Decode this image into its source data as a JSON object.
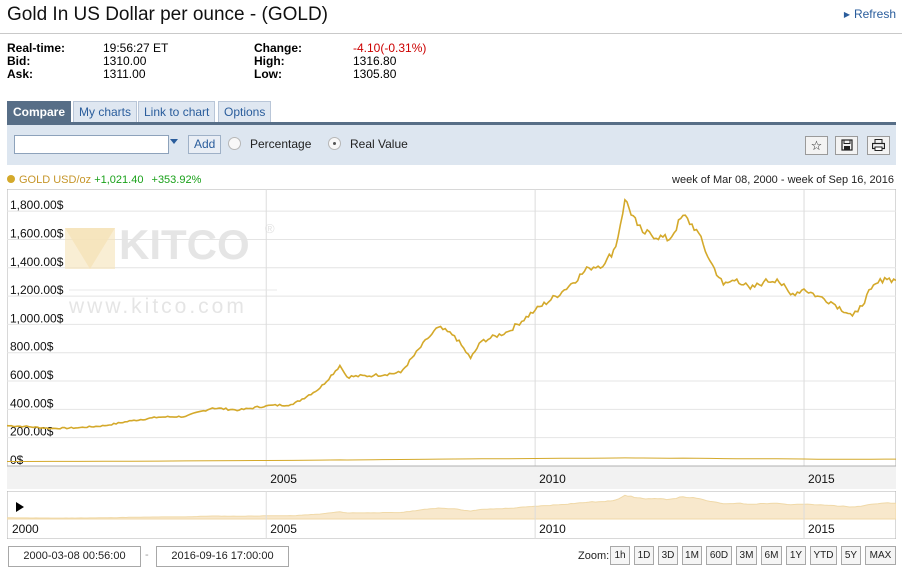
{
  "header": {
    "title": "Gold In US Dollar per ounce - (GOLD)",
    "refresh_label": "Refresh"
  },
  "quote": {
    "realtime_label": "Real-time:",
    "realtime_value": "19:56:27 ET",
    "bid_label": "Bid:",
    "bid_value": "1310.00",
    "ask_label": "Ask:",
    "ask_value": "1311.00",
    "change_label": "Change:",
    "change_value": "-4.10(-0.31%)",
    "high_label": "High:",
    "high_value": "1316.80",
    "low_label": "Low:",
    "low_value": "1305.80"
  },
  "tabs": [
    {
      "label": "Compare"
    },
    {
      "label": "My charts"
    },
    {
      "label": "Link to chart"
    },
    {
      "label": "Options"
    }
  ],
  "toolbar": {
    "compare_value": "",
    "add_label": "Add",
    "percentage_label": "Percentage",
    "realvalue_label": "Real Value",
    "selected_mode": "Real Value",
    "icons": [
      "star-icon",
      "save-icon",
      "print-icon"
    ]
  },
  "legend": {
    "series_label": "GOLD USD/oz",
    "change": "+1,021.40",
    "change_pct": "+353.92%",
    "period": "week of Mar 08, 2000 - week of Sep 16, 2016"
  },
  "watermark": {
    "brand": "KITCO",
    "registered": "®",
    "url": "www.kitco.com"
  },
  "chart_data": {
    "type": "line",
    "x": [
      2000.18,
      2000.5,
      2001.0,
      2001.5,
      2002.0,
      2002.5,
      2003.0,
      2003.5,
      2004.0,
      2004.5,
      2005.0,
      2005.5,
      2006.0,
      2006.37,
      2006.5,
      2007.0,
      2007.5,
      2008.0,
      2008.2,
      2008.5,
      2008.8,
      2009.0,
      2009.5,
      2010.0,
      2010.5,
      2011.0,
      2011.3,
      2011.5,
      2011.67,
      2011.9,
      2012.0,
      2012.5,
      2012.75,
      2013.0,
      2013.25,
      2013.5,
      2013.75,
      2014.0,
      2014.25,
      2014.5,
      2014.75,
      2015.0,
      2015.25,
      2015.5,
      2015.9,
      2016.0,
      2016.25,
      2016.5,
      2016.71
    ],
    "values": [
      285,
      280,
      265,
      270,
      285,
      320,
      345,
      350,
      410,
      395,
      425,
      435,
      550,
      710,
      630,
      640,
      660,
      900,
      980,
      920,
      760,
      880,
      950,
      1100,
      1230,
      1400,
      1430,
      1550,
      1880,
      1700,
      1650,
      1600,
      1770,
      1670,
      1450,
      1280,
      1320,
      1250,
      1300,
      1320,
      1210,
      1250,
      1200,
      1160,
      1060,
      1090,
      1250,
      1330,
      1310
    ],
    "volume": [
      25,
      25,
      26,
      27,
      28,
      30,
      32,
      35,
      38,
      40,
      42,
      44,
      48,
      52,
      50,
      55,
      58,
      62,
      65,
      66,
      68,
      70,
      72,
      75,
      78,
      80,
      82,
      84,
      85,
      84,
      83,
      80,
      82,
      79,
      76,
      74,
      72,
      70,
      71,
      70,
      68,
      66,
      64,
      63,
      62,
      62,
      64,
      65,
      65
    ],
    "ylim": [
      0,
      1900
    ],
    "yticks": [
      0,
      200,
      400,
      600,
      800,
      1000,
      1200,
      1400,
      1600,
      1800
    ],
    "ytick_labels": [
      "0$",
      "200.00$",
      "400.00$",
      "600.00$",
      "800.00$",
      "1,000.00$",
      "1,200.00$",
      "1,400.00$",
      "1,600.00$",
      "1,800.00$"
    ],
    "xticks": [
      2005,
      2010,
      2015
    ],
    "xtick_labels": [
      "2005",
      "2010",
      "2015"
    ],
    "navigator_ticks": [
      2000,
      2005,
      2010,
      2015
    ],
    "navigator_labels": [
      "2000",
      "2005",
      "2010",
      "2015"
    ],
    "xlim": [
      2000.18,
      2016.71
    ],
    "series_color": "#d4a92b",
    "grid": true
  },
  "range": {
    "from": "2000-03-08 00:56:00",
    "to": "2016-09-16 17:00:00"
  },
  "zoom": {
    "label": "Zoom:",
    "buttons": [
      "1h",
      "1D",
      "3D",
      "1M",
      "60D",
      "3M",
      "6M",
      "1Y",
      "YTD",
      "5Y",
      "MAX"
    ]
  }
}
